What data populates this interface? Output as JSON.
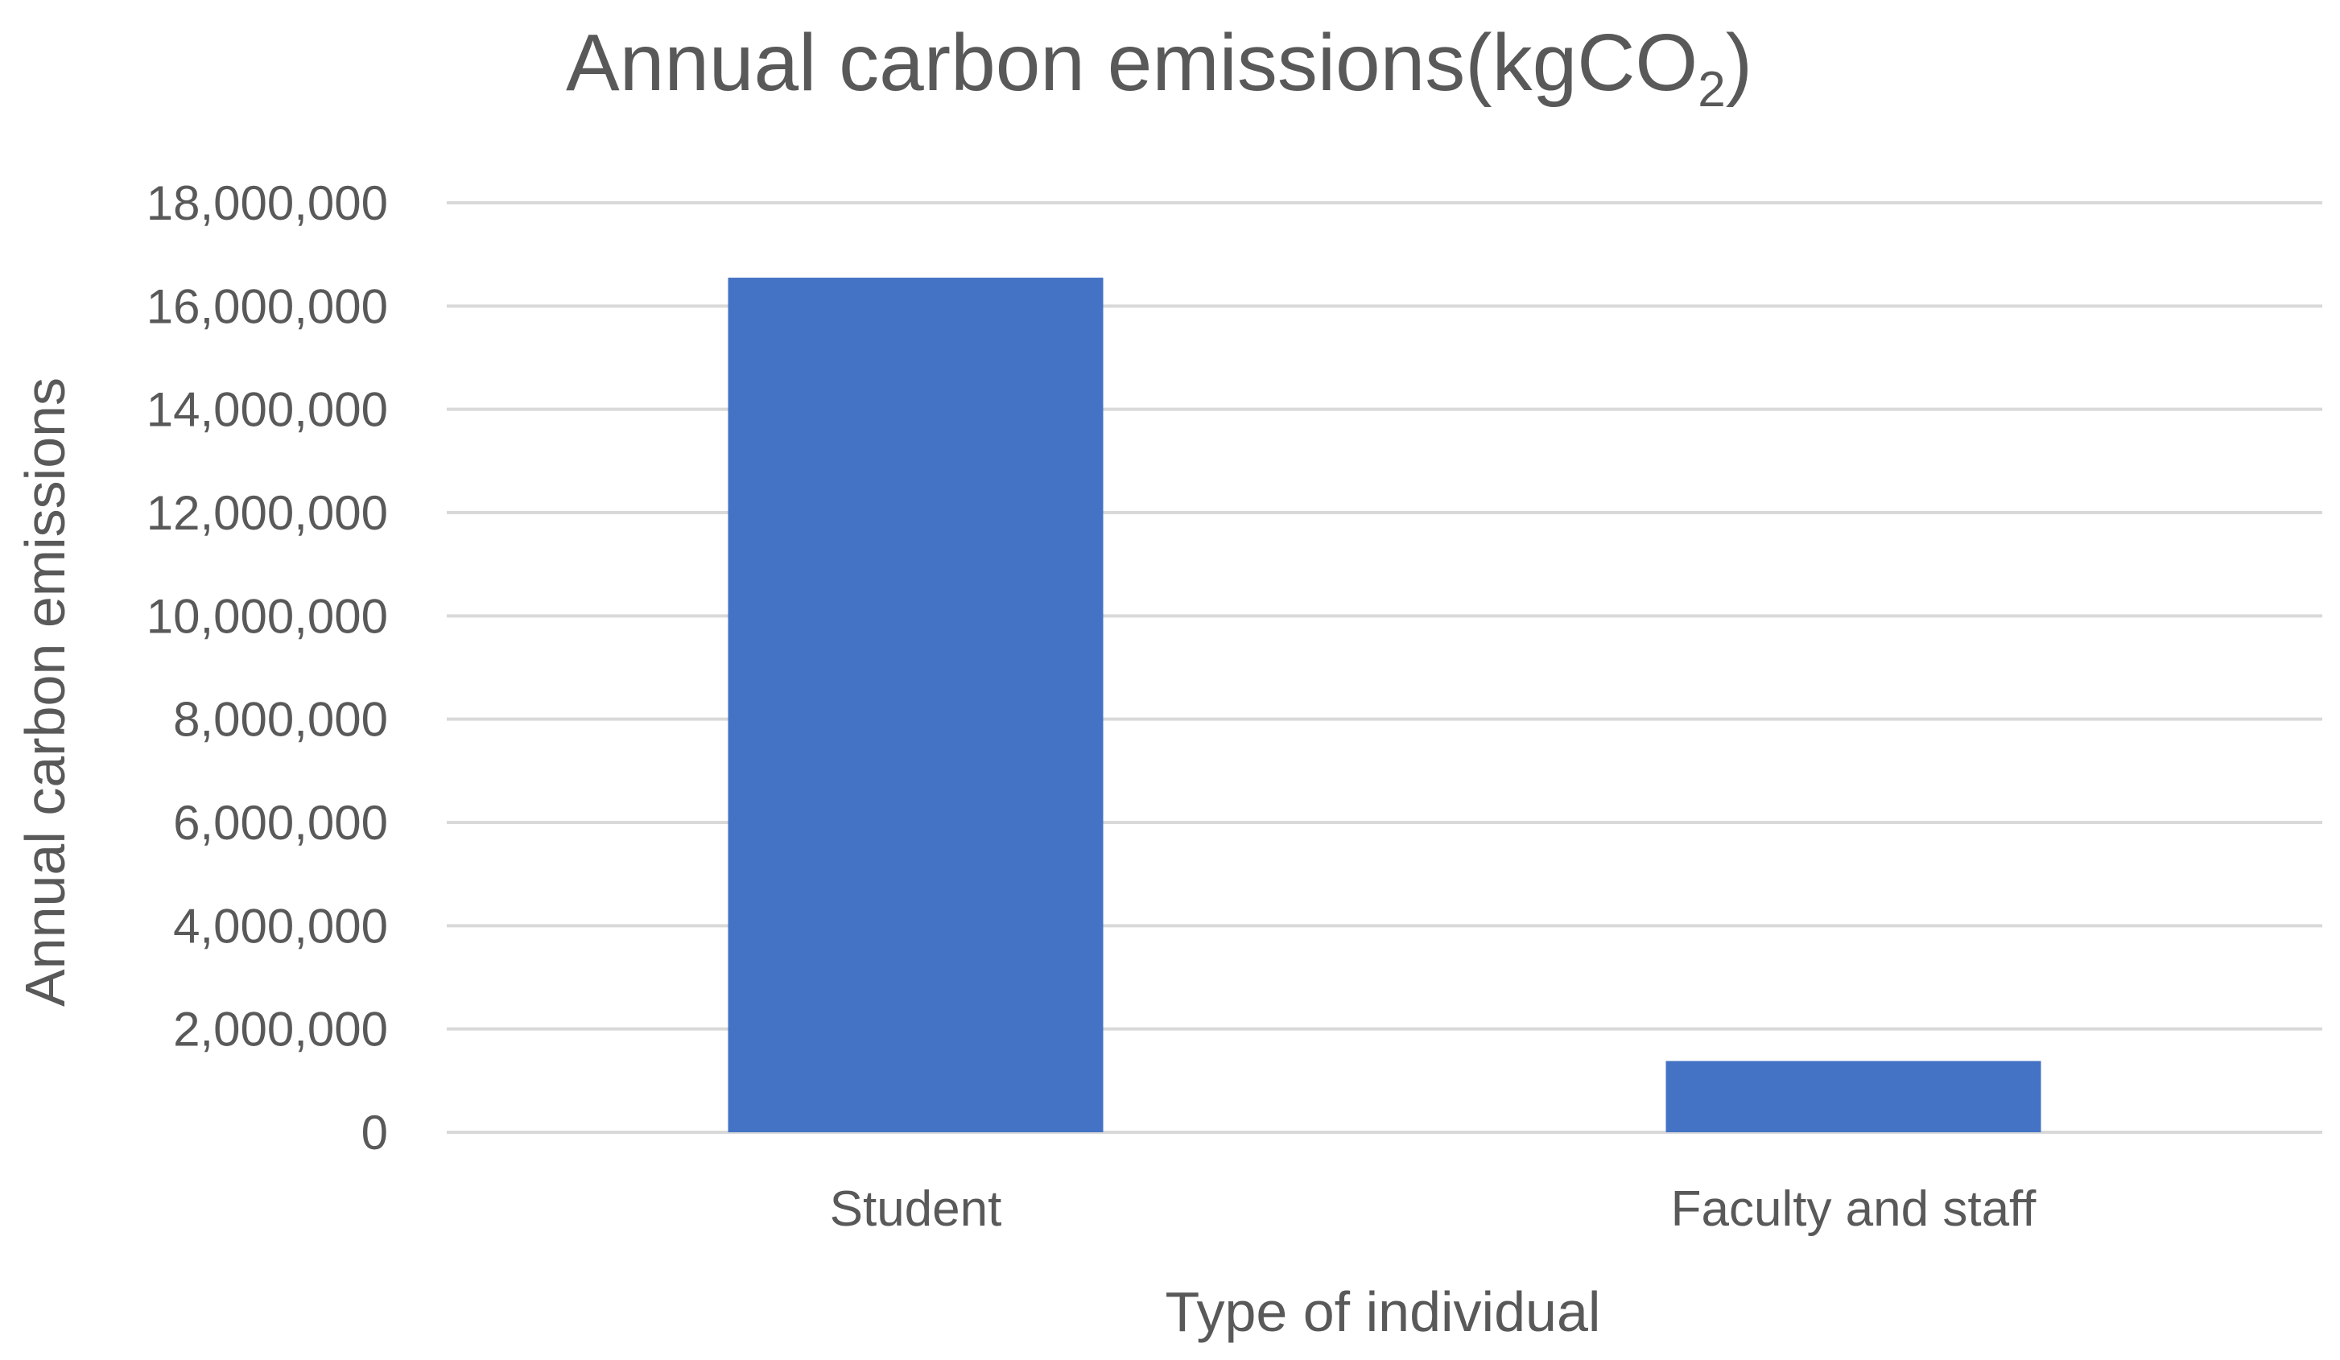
{
  "chart_data": {
    "type": "bar",
    "title": "Annual carbon emissions(kgCO",
    "title_subscript": "2",
    "title_close": ")",
    "xlabel": "Type of individual",
    "ylabel": "Annual carbon emissions",
    "categories": [
      "Student",
      "Faculty and staff"
    ],
    "values": [
      16550000,
      1380000
    ],
    "ylim": [
      0,
      18000000
    ],
    "yticks": [
      0,
      2000000,
      4000000,
      6000000,
      8000000,
      10000000,
      12000000,
      14000000,
      16000000,
      18000000
    ],
    "ytick_labels": [
      "0",
      "2,000,000",
      "4,000,000",
      "6,000,000",
      "8,000,000",
      "10,000,000",
      "12,000,000",
      "14,000,000",
      "16,000,000",
      "18,000,000"
    ],
    "grid": true,
    "legend": "none",
    "bar_color": "#4472c4",
    "grid_color": "#d9d9d9",
    "text_color": "#595959"
  }
}
